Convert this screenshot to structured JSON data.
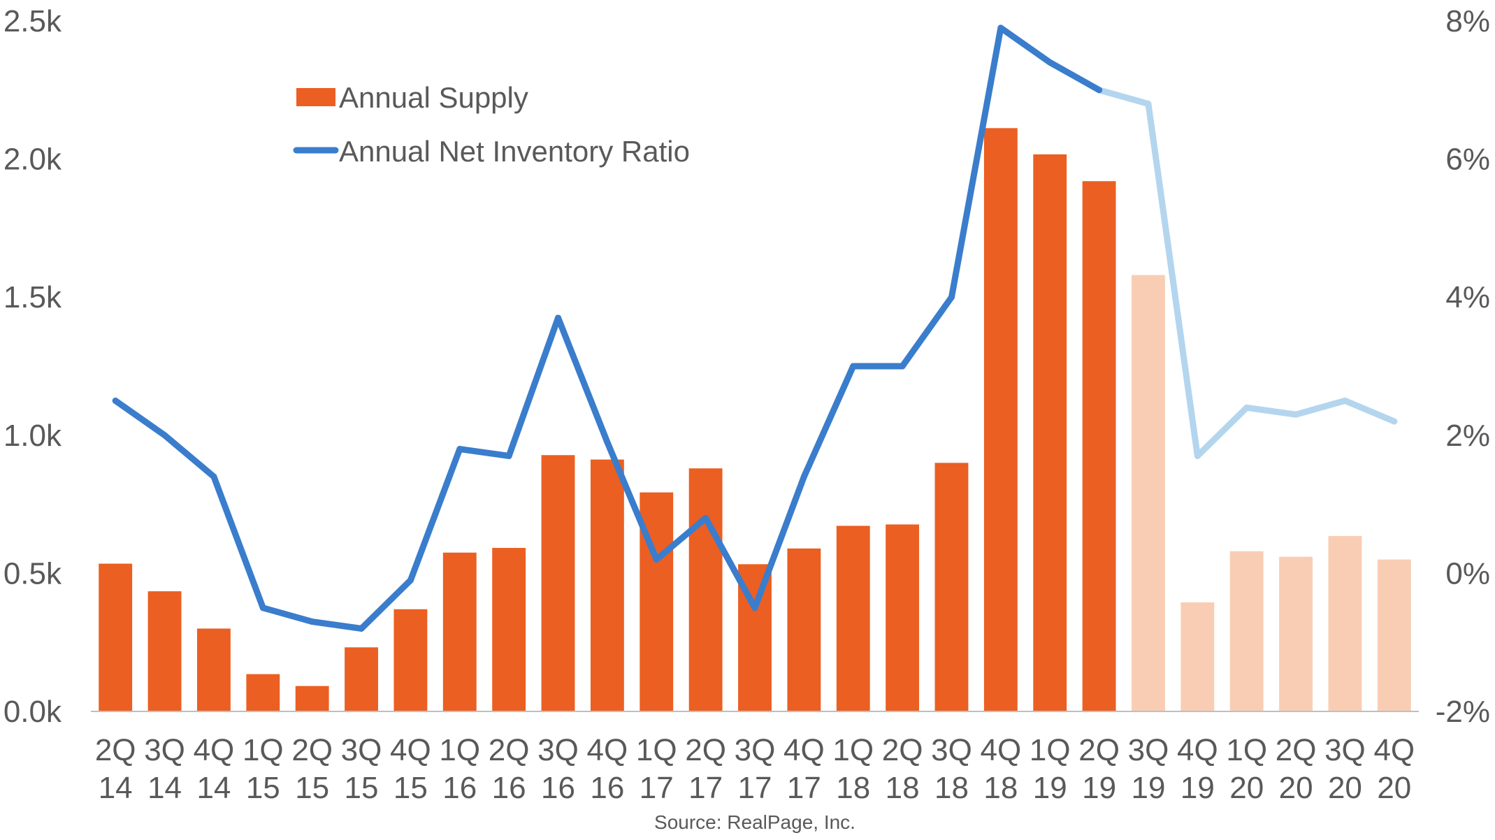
{
  "chart_data": {
    "type": "bar",
    "categories": [
      [
        "2Q",
        "14"
      ],
      [
        "3Q",
        "14"
      ],
      [
        "4Q",
        "14"
      ],
      [
        "1Q",
        "15"
      ],
      [
        "2Q",
        "15"
      ],
      [
        "3Q",
        "15"
      ],
      [
        "4Q",
        "15"
      ],
      [
        "1Q",
        "16"
      ],
      [
        "2Q",
        "16"
      ],
      [
        "3Q",
        "16"
      ],
      [
        "4Q",
        "16"
      ],
      [
        "1Q",
        "17"
      ],
      [
        "2Q",
        "17"
      ],
      [
        "3Q",
        "17"
      ],
      [
        "4Q",
        "17"
      ],
      [
        "1Q",
        "18"
      ],
      [
        "2Q",
        "18"
      ],
      [
        "3Q",
        "18"
      ],
      [
        "4Q",
        "18"
      ],
      [
        "1Q",
        "19"
      ],
      [
        "2Q",
        "19"
      ],
      [
        "3Q",
        "19"
      ],
      [
        "4Q",
        "19"
      ],
      [
        "1Q",
        "20"
      ],
      [
        "2Q",
        "20"
      ],
      [
        "3Q",
        "20"
      ],
      [
        "4Q",
        "20"
      ]
    ],
    "series": [
      {
        "name": "Annual Supply",
        "type": "bar",
        "axis": "left",
        "values": [
          535,
          435,
          300,
          135,
          92,
          232,
          370,
          575,
          592,
          928,
          912,
          793,
          880,
          533,
          590,
          672,
          677,
          900,
          2112,
          2017,
          1920,
          1580,
          395,
          580,
          560,
          635,
          550
        ],
        "forecast_from_index": 21
      },
      {
        "name": "Annual Net Inventory Ratio",
        "type": "line",
        "axis": "right",
        "values": [
          2.5,
          2.0,
          1.4,
          -0.5,
          -0.7,
          -0.8,
          -0.1,
          1.8,
          1.7,
          3.7,
          1.9,
          0.2,
          0.8,
          -0.5,
          1.4,
          3.0,
          3.0,
          4.0,
          7.9,
          7.4,
          7.0,
          6.8,
          1.7,
          2.4,
          2.3,
          2.5,
          2.2
        ],
        "forecast_from_index": 21
      }
    ],
    "left_axis": {
      "ticks": [
        "0.0k",
        "0.5k",
        "1.0k",
        "1.5k",
        "2.0k",
        "2.5k"
      ],
      "ylim": [
        0,
        2500
      ]
    },
    "right_axis": {
      "ticks": [
        "-2%",
        "0%",
        "2%",
        "4%",
        "6%",
        "8%"
      ],
      "ylim": [
        -2,
        8
      ]
    },
    "legend": {
      "placement": "top-left"
    },
    "grid": false,
    "colors": {
      "bar": "#EB5F22",
      "bar_forecast": "#F9CDB3",
      "line": "#3A7DCC",
      "line_forecast": "#B4D5EE",
      "axis": "#BFBFBF",
      "text": "#595959"
    },
    "source": "Source: RealPage, Inc."
  }
}
